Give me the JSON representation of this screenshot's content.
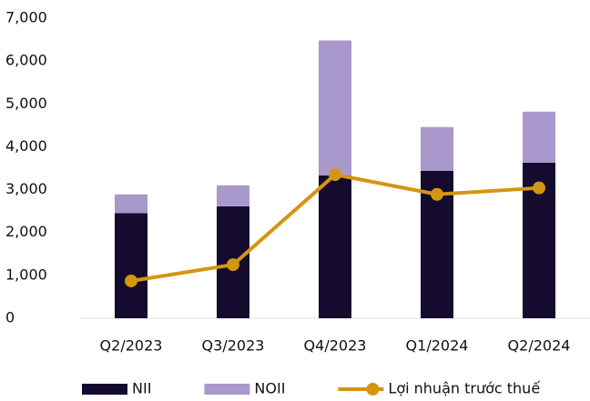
{
  "chart_data": {
    "type": "bar",
    "categories": [
      "Q2/2023",
      "Q3/2023",
      "Q4/2023",
      "Q1/2024",
      "Q2/2024"
    ],
    "series": [
      {
        "name": "NII",
        "color": "#140b2e",
        "values": [
          2450,
          2610,
          3330,
          3440,
          3630
        ]
      },
      {
        "name": "NOII",
        "color": "#a898cc",
        "values": [
          440,
          490,
          3150,
          1020,
          1190
        ]
      },
      {
        "name": "Lợi nhuận trước thuế",
        "color": "#d4960f",
        "type": "line",
        "values": [
          870,
          1250,
          3350,
          2890,
          3040
        ]
      }
    ],
    "ylim": [
      0,
      7000
    ],
    "yticks": [
      0,
      {
        "value": 1000,
        "label": "1,000"
      },
      {
        "value": 2000,
        "label": "2,000"
      },
      {
        "value": 3000,
        "label": "3,000"
      },
      {
        "value": 4000,
        "label": "4,000"
      },
      {
        "value": 5000,
        "label": "5,000"
      },
      {
        "value": 6000,
        "label": "6,000"
      },
      {
        "value": 7000,
        "label": "7,000"
      }
    ],
    "stacked": true,
    "grid": false,
    "legend": "bottom"
  }
}
